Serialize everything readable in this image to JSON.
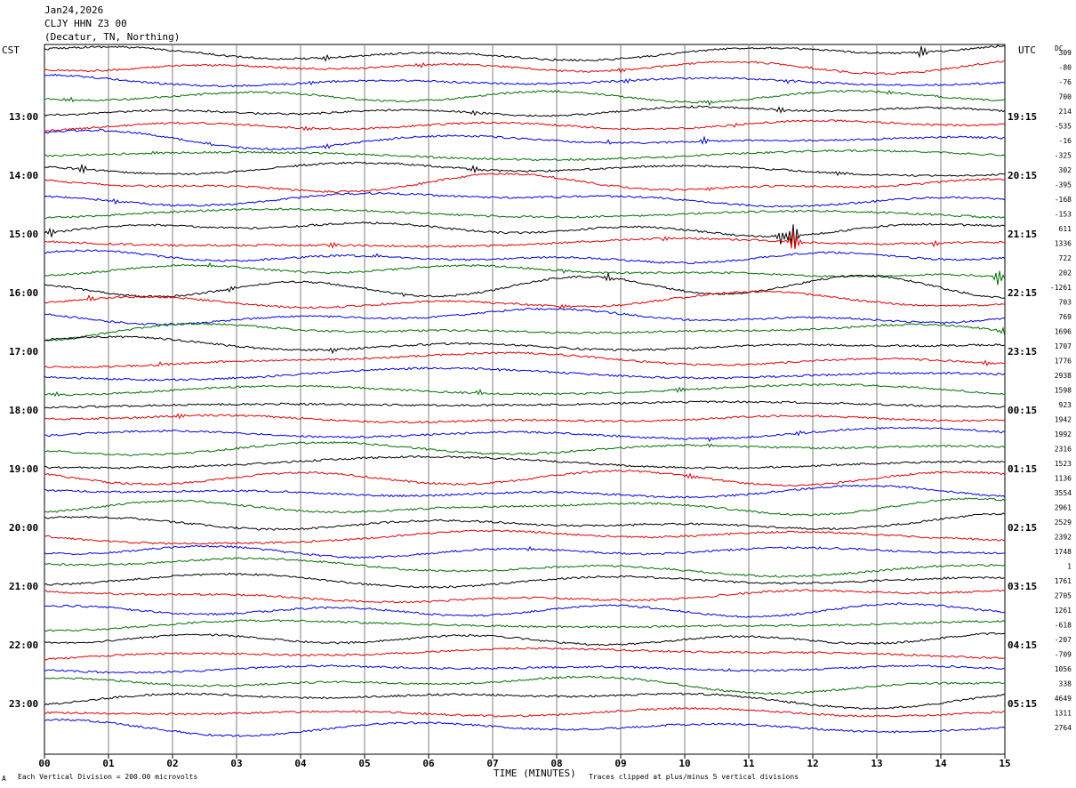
{
  "header": {
    "date": "Jan24,2026",
    "station": "CLJY HHN Z3 00",
    "location": "(Decatur, TN, Northing)"
  },
  "left_zone_label": "CST",
  "right_zone_label": "UTC",
  "dc_label": "DC",
  "footer": {
    "scale_note": "Each Vertical Division =  200.00 microvolts",
    "clip_note": "Traces clipped at plus/minus 5 vertical divisions",
    "corner_mark": "A"
  },
  "chart_data": {
    "type": "line",
    "title": "",
    "xlabel": "TIME (MINUTES)",
    "xlim": [
      0,
      15
    ],
    "x_tick_labels": [
      "00",
      "01",
      "02",
      "03",
      "04",
      "05",
      "06",
      "07",
      "08",
      "09",
      "10",
      "11",
      "12",
      "13",
      "14",
      "15"
    ],
    "left_hour_labels": [
      "13:00",
      "14:00",
      "15:00",
      "16:00",
      "17:00",
      "18:00",
      "19:00",
      "20:00",
      "21:00",
      "22:00",
      "23:00"
    ],
    "right_hour_labels": [
      "19:15",
      "20:15",
      "21:15",
      "22:15",
      "23:15",
      "00:15",
      "01:15",
      "02:15",
      "03:15",
      "04:15",
      "05:15"
    ],
    "trace_colors": [
      "#000000",
      "#e00000",
      "#0000e0",
      "#007000"
    ],
    "grid": "vertical lines each minute",
    "dc_offsets": [
      "309",
      "-80",
      "-76",
      "700",
      "214",
      "-535",
      "-16",
      "-325",
      "302",
      "-395",
      "-168",
      "-153",
      "611",
      "1336",
      "722",
      "202",
      "-1261",
      "703",
      "769",
      "1696",
      "1707",
      "1776",
      "2938",
      "1598",
      "923",
      "1942",
      "1992",
      "2316",
      "1523",
      "1136",
      "3554",
      "2961",
      "2529",
      "2392",
      "1748",
      "1",
      "1761",
      "2705",
      "1261",
      "-618",
      "-207",
      "-709",
      "1056",
      "338",
      "4649",
      "1311",
      "2764"
    ],
    "events": [
      {
        "trace": 0,
        "minute": 4.4,
        "amp": 3
      },
      {
        "trace": 0,
        "minute": 13.7,
        "amp": 10
      },
      {
        "trace": 1,
        "minute": 5.9,
        "amp": 4
      },
      {
        "trace": 1,
        "minute": 9.0,
        "amp": 4
      },
      {
        "trace": 2,
        "minute": 4.2,
        "amp": 3
      },
      {
        "trace": 2,
        "minute": 9.1,
        "amp": 4
      },
      {
        "trace": 2,
        "minute": 11.6,
        "amp": 3
      },
      {
        "trace": 3,
        "minute": 0.4,
        "amp": 4
      },
      {
        "trace": 3,
        "minute": 10.4,
        "amp": 4
      },
      {
        "trace": 3,
        "minute": 13.2,
        "amp": 4
      },
      {
        "trace": 4,
        "minute": 6.7,
        "amp": 4
      },
      {
        "trace": 4,
        "minute": 11.5,
        "amp": 4
      },
      {
        "trace": 5,
        "minute": 4.1,
        "amp": 3
      },
      {
        "trace": 5,
        "minute": 10.8,
        "amp": 3
      },
      {
        "trace": 6,
        "minute": 2.6,
        "amp": 3
      },
      {
        "trace": 6,
        "minute": 4.4,
        "amp": 4
      },
      {
        "trace": 6,
        "minute": 8.8,
        "amp": 3
      },
      {
        "trace": 6,
        "minute": 10.3,
        "amp": 5
      },
      {
        "trace": 7,
        "minute": 1.7,
        "amp": 3
      },
      {
        "trace": 8,
        "minute": 0.6,
        "amp": 7
      },
      {
        "trace": 8,
        "minute": 6.7,
        "amp": 5
      },
      {
        "trace": 8,
        "minute": 12.4,
        "amp": 4
      },
      {
        "trace": 9,
        "minute": 10.4,
        "amp": 3
      },
      {
        "trace": 10,
        "minute": 1.1,
        "amp": 3
      },
      {
        "trace": 12,
        "minute": 0.1,
        "amp": 6
      },
      {
        "trace": 12,
        "minute": 11.5,
        "amp": 10
      },
      {
        "trace": 12,
        "minute": 11.7,
        "amp": 24
      },
      {
        "trace": 13,
        "minute": 4.5,
        "amp": 4
      },
      {
        "trace": 13,
        "minute": 9.7,
        "amp": 3
      },
      {
        "trace": 13,
        "minute": 13.9,
        "amp": 4
      },
      {
        "trace": 13,
        "minute": 11.7,
        "amp": 18
      },
      {
        "trace": 14,
        "minute": 5.2,
        "amp": 3
      },
      {
        "trace": 15,
        "minute": 2.6,
        "amp": 3
      },
      {
        "trace": 15,
        "minute": 8.1,
        "amp": 3
      },
      {
        "trace": 15,
        "minute": 14.9,
        "amp": 12
      },
      {
        "trace": 16,
        "minute": 5.6,
        "amp": 3
      },
      {
        "trace": 16,
        "minute": 8.8,
        "amp": 6
      },
      {
        "trace": 16,
        "minute": 2.9,
        "amp": 3
      },
      {
        "trace": 17,
        "minute": 0.7,
        "amp": 4
      },
      {
        "trace": 17,
        "minute": 8.1,
        "amp": 3
      },
      {
        "trace": 19,
        "minute": 15.0,
        "amp": 8
      },
      {
        "trace": 20,
        "minute": 4.5,
        "amp": 5
      },
      {
        "trace": 21,
        "minute": 1.8,
        "amp": 3
      },
      {
        "trace": 21,
        "minute": 14.7,
        "amp": 4
      },
      {
        "trace": 22,
        "minute": 7.1,
        "amp": 4
      },
      {
        "trace": 23,
        "minute": 0.2,
        "amp": 4
      },
      {
        "trace": 23,
        "minute": 6.8,
        "amp": 4
      },
      {
        "trace": 23,
        "minute": 9.9,
        "amp": 4
      },
      {
        "trace": 25,
        "minute": 2.1,
        "amp": 3
      },
      {
        "trace": 26,
        "minute": 10.4,
        "amp": 3
      },
      {
        "trace": 26,
        "minute": 11.8,
        "amp": 2
      },
      {
        "trace": 27,
        "minute": 10.4,
        "amp": 2
      },
      {
        "trace": 29,
        "minute": 10.1,
        "amp": 4
      },
      {
        "trace": 34,
        "minute": 7.6,
        "amp": 3
      },
      {
        "trace": 42,
        "minute": 10.7,
        "amp": 3
      }
    ]
  }
}
